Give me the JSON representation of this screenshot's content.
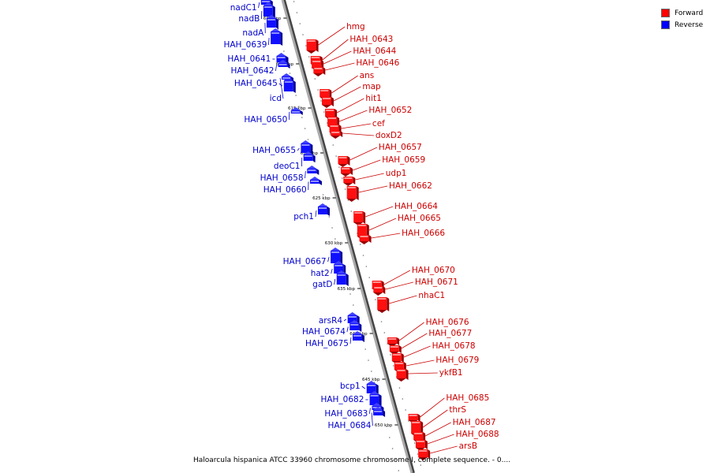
{
  "legend": {
    "forward_label": "Forward",
    "reverse_label": "Reverse",
    "forward_color": "#ff0000",
    "reverse_color": "#0000ff"
  },
  "caption": "Haloarcula hispanica ATCC 33960 chromosome chromosome I, complete sequence. - 0....",
  "scale_unit": "kbp",
  "scale_ticks": [
    605,
    610,
    615,
    620,
    625,
    630,
    635,
    640,
    645,
    650
  ],
  "genes_reverse": [
    "nadC1",
    "nadB",
    "nadA",
    "HAH_0639",
    "HAH_0641",
    "HAH_0642",
    "HAH_0645",
    "icd",
    "HAH_0650",
    "HAH_0655",
    "deoC1",
    "HAH_0658",
    "HAH_0660",
    "pch1",
    "HAH_0667",
    "hat2",
    "gatD",
    "arsR4",
    "HAH_0674",
    "HAH_0675",
    "bcp1",
    "HAH_0682",
    "HAH_0683",
    "HAH_0684"
  ],
  "genes_forward": [
    "hmg",
    "HAH_0643",
    "HAH_0644",
    "HAH_0646",
    "ans",
    "map",
    "hit1",
    "HAH_0652",
    "cef",
    "doxD2",
    "HAH_0657",
    "HAH_0659",
    "udp1",
    "HAH_0662",
    "HAH_0664",
    "HAH_0665",
    "HAH_0666",
    "HAH_0670",
    "HAH_0671",
    "nhaC1",
    "HAH_0676",
    "HAH_0677",
    "HAH_0678",
    "HAH_0679",
    "ykfB1",
    "HAH_0685",
    "thrS",
    "HAH_0687",
    "HAH_0688",
    "arsB"
  ]
}
